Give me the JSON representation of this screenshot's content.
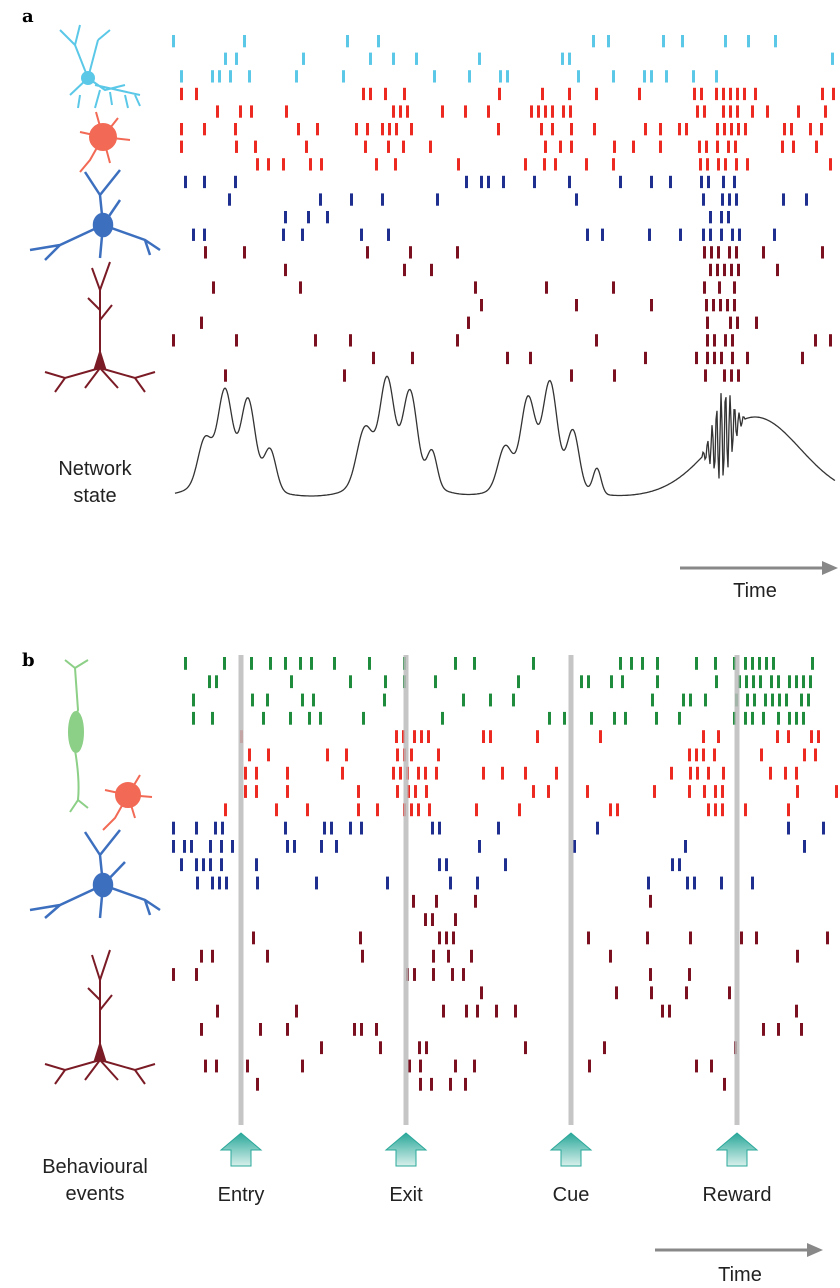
{
  "panel_a": {
    "label": "a",
    "network_state": "Network state",
    "time": "Time"
  },
  "panel_b": {
    "label": "b",
    "behavioural_events": "Behavioural events",
    "events": [
      "Entry",
      "Exit",
      "Cue",
      "Reward"
    ],
    "time": "Time"
  }
}
